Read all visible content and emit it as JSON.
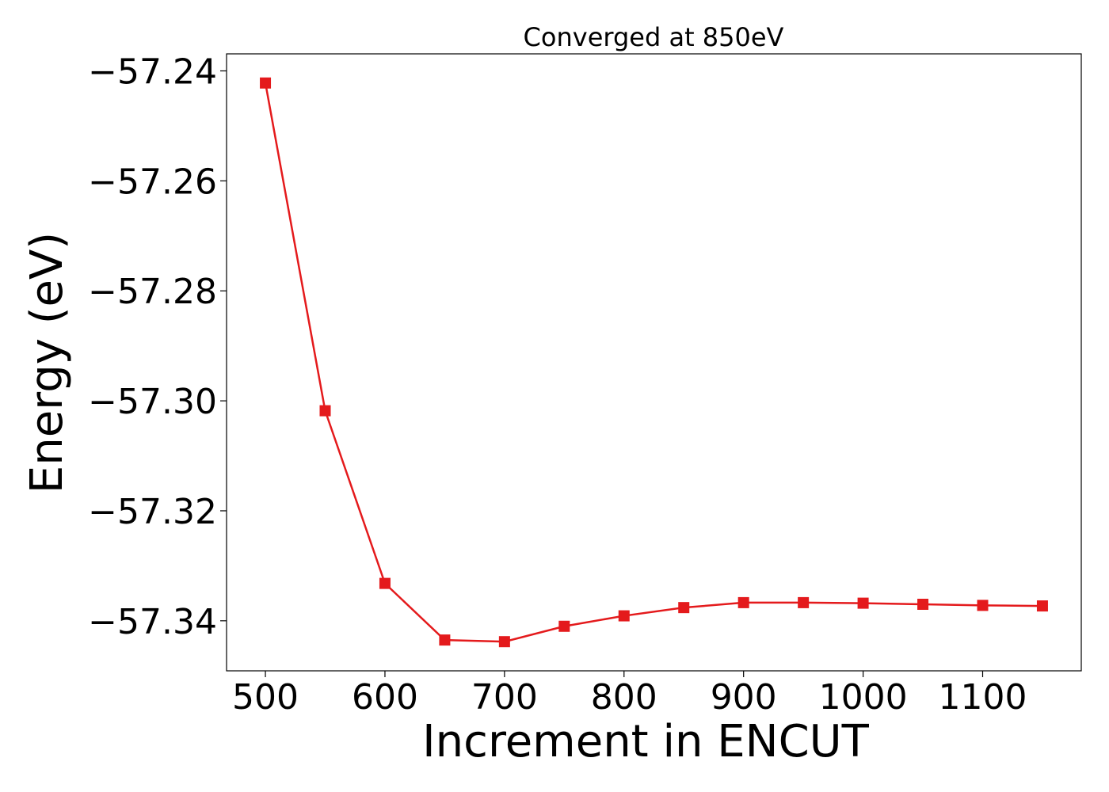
{
  "chart_data": {
    "type": "line",
    "title": "Converged at 850eV",
    "xlabel": "Increment in ENCUT",
    "ylabel": "Energy (eV)",
    "x": [
      500,
      550,
      600,
      650,
      700,
      750,
      800,
      850,
      900,
      950,
      1000,
      1050,
      1100,
      1150
    ],
    "series": [
      {
        "values": [
          -57.2422,
          -57.3018,
          -57.3332,
          -57.3435,
          -57.3438,
          -57.341,
          -57.3391,
          -57.3376,
          -57.3367,
          -57.3367,
          -57.3368,
          -57.337,
          -57.3372,
          -57.3373
        ],
        "color": "#e41a1c",
        "marker": "square"
      }
    ],
    "xlim": [
      467.5,
      1182.5
    ],
    "ylim": [
      -57.3491,
      -57.2369
    ],
    "xticks": [
      500,
      600,
      700,
      800,
      900,
      1000,
      1100
    ],
    "xtick_labels": [
      "500",
      "600",
      "700",
      "800",
      "900",
      "1000",
      "1100"
    ],
    "yticks": [
      -57.24,
      -57.26,
      -57.28,
      -57.3,
      -57.32,
      -57.34
    ],
    "ytick_labels": [
      "−57.24",
      "−57.26",
      "−57.28",
      "−57.30",
      "−57.32",
      "−57.34"
    ],
    "grid": false,
    "legend": "none"
  }
}
